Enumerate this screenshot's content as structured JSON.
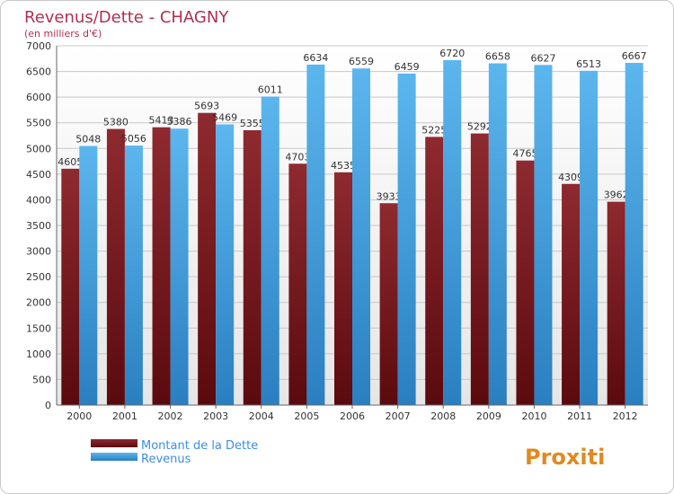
{
  "chart_data": {
    "type": "bar",
    "title": "Revenus/Dette - CHAGNY",
    "subtitle": "(en milliers d'€)",
    "xlabel": "",
    "ylabel": "",
    "ylim": [
      0,
      7000
    ],
    "ytick_step": 500,
    "grid": true,
    "categories": [
      "2000",
      "2001",
      "2002",
      "2003",
      "2004",
      "2005",
      "2006",
      "2007",
      "2008",
      "2009",
      "2010",
      "2011",
      "2012"
    ],
    "series": [
      {
        "name": "Montant de la Dette",
        "color": "#7a1e22",
        "values": [
          4605,
          5380,
          5413,
          5693,
          5355,
          4703,
          4535,
          3933,
          5225,
          5292,
          4765,
          4309,
          3962
        ]
      },
      {
        "name": "Revenus",
        "color": "#3d9ee0",
        "values": [
          5048,
          5056,
          5386,
          5469,
          6011,
          6634,
          6559,
          6459,
          6720,
          6658,
          6627,
          6513,
          6667
        ]
      }
    ],
    "legend_position": "bottom-left"
  },
  "watermark": {
    "text": "Proxiti"
  }
}
